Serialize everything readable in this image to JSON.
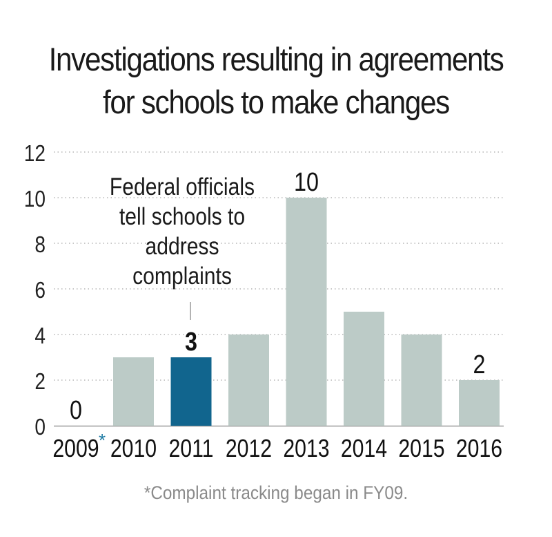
{
  "chart_data": {
    "type": "bar",
    "title_line1": "Investigations resulting in agreements",
    "title_line2": "for schools to make changes",
    "categories": [
      "2009",
      "2010",
      "2011",
      "2012",
      "2013",
      "2014",
      "2015",
      "2016"
    ],
    "first_category_marker": "*",
    "values": [
      0,
      3,
      3,
      4,
      10,
      5,
      4,
      2
    ],
    "highlight_index": 2,
    "data_labels": [
      {
        "index": 0,
        "text": "0",
        "bold": false
      },
      {
        "index": 2,
        "text": "3",
        "bold": true
      },
      {
        "index": 4,
        "text": "10",
        "bold": false
      },
      {
        "index": 7,
        "text": "2",
        "bold": false
      }
    ],
    "annotation": {
      "index": 2,
      "lines": [
        "Federal officials",
        "tell schools to",
        "address",
        "complaints"
      ]
    },
    "yticks": [
      "0",
      "2",
      "4",
      "6",
      "8",
      "10",
      "12"
    ],
    "ylim": [
      0,
      12
    ],
    "grid": true,
    "colors": {
      "bar": "#bccbc7",
      "highlight": "#11658e",
      "grid": "#b5b5b5",
      "marker": "#1d7aa3",
      "footnote": "#8a8a8a"
    },
    "footnote_marker": "*",
    "footnote": "Complaint tracking began in FY09."
  }
}
